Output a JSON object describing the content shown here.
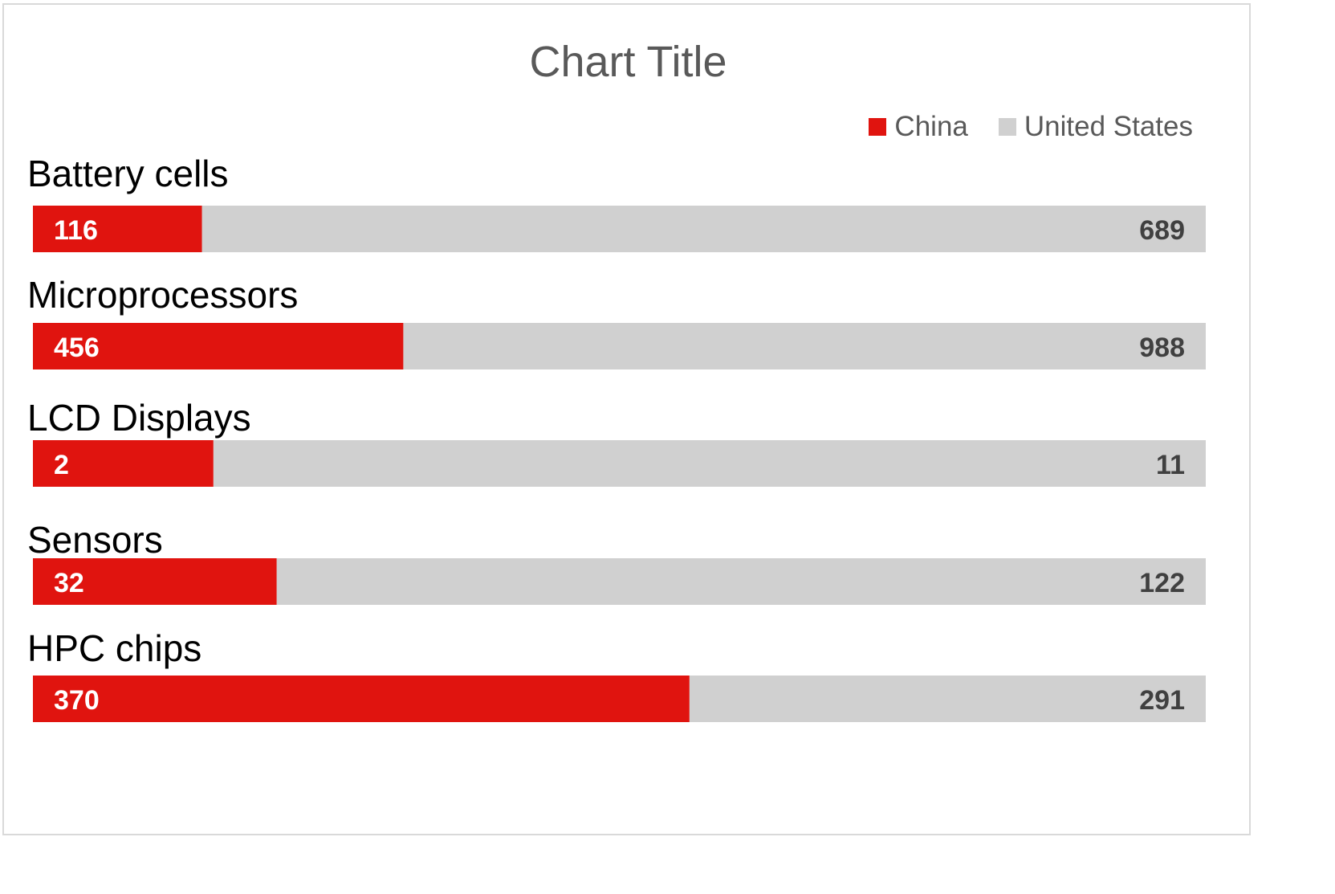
{
  "chart_data": {
    "type": "bar",
    "orientation": "horizontal",
    "stacked": "100%",
    "title": "Chart Title",
    "categories": [
      "Battery cells",
      "Microprocessors",
      "LCD Displays",
      "Sensors",
      "HPC chips"
    ],
    "series": [
      {
        "name": "China",
        "color": "#e0140f",
        "values": [
          116,
          456,
          2,
          32,
          370
        ]
      },
      {
        "name": "United States",
        "color": "#d0d0d0",
        "values": [
          689,
          988,
          11,
          122,
          291
        ]
      }
    ],
    "legend": "top-right",
    "grid": false,
    "data_labels": true
  }
}
